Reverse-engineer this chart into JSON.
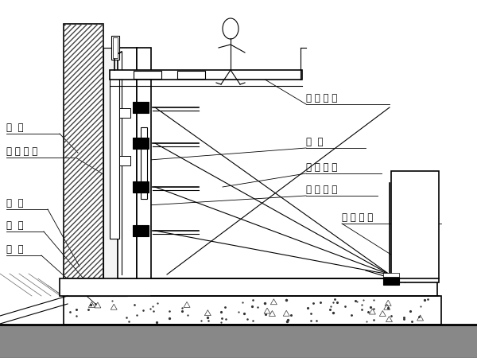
{
  "bg_color": "#ffffff",
  "line_color": "#000000",
  "labels": {
    "wall": "墙  体",
    "waterproof": "防 水 保 护",
    "guide_wall": "导  墙",
    "base_plate": "底  板",
    "cushion": "垫  层",
    "platform": "操 作 平 台",
    "formwork": "模  板",
    "single_support": "单 侧 支 架",
    "embed": "埋 件 系 统",
    "adjust_rod": "调 节 丝 杆"
  }
}
